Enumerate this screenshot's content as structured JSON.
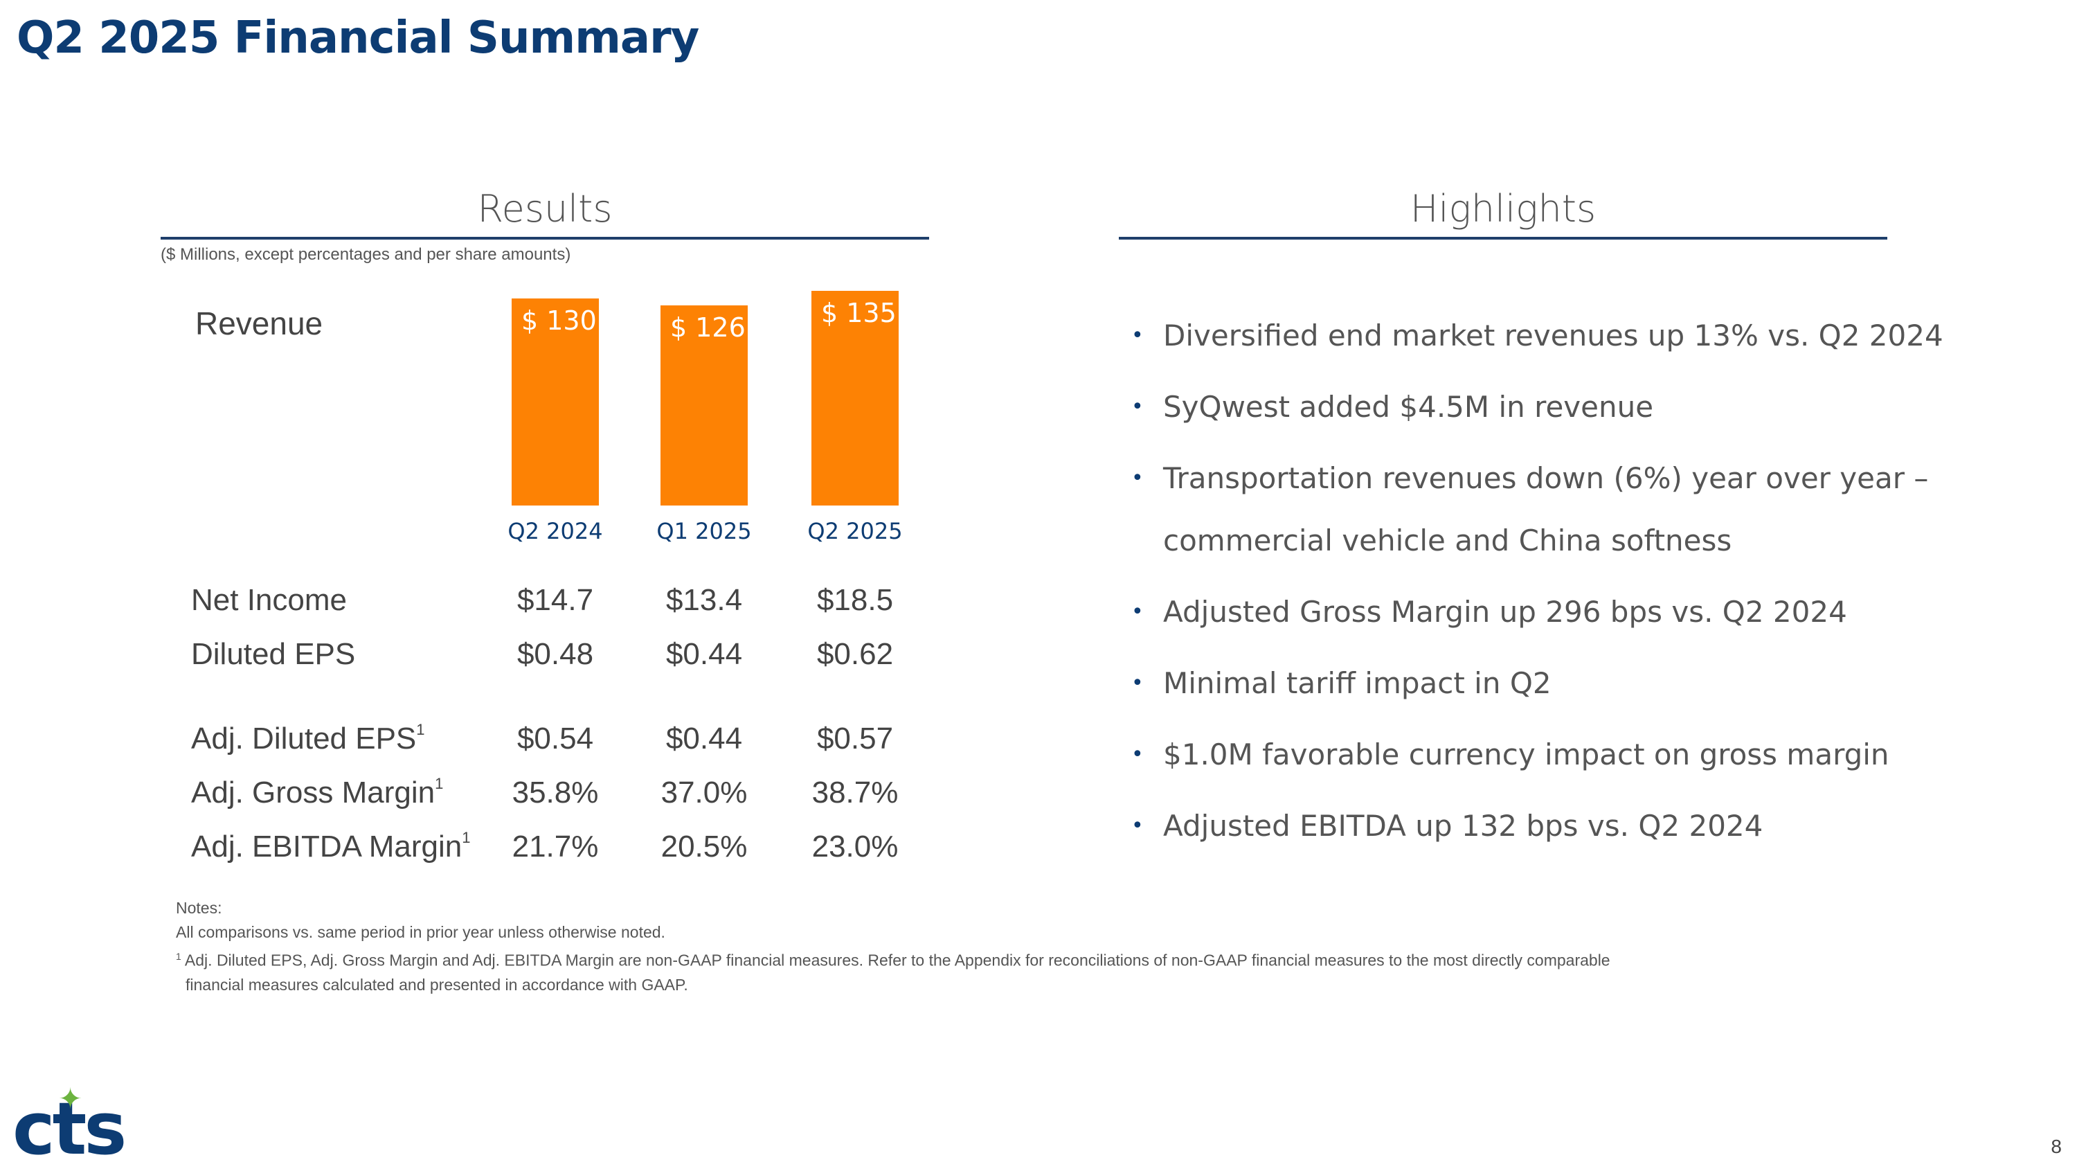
{
  "title": "Q2 2025 Financial Summary",
  "results": {
    "heading": "Results",
    "units": "($ Millions, except percentages and per share amounts)"
  },
  "highlights": {
    "heading": "Highlights",
    "items": [
      "Diversified end market revenues up 13% vs. Q2 2024",
      "SyQwest added $4.5M in revenue",
      "Transportation revenues down (6%) year over year – commercial vehicle and China softness",
      "Adjusted Gross Margin up 296 bps vs. Q2 2024",
      "Minimal tariff impact in Q2",
      "$1.0M favorable currency impact on gross margin",
      "Adjusted EBITDA up 132 bps vs. Q2 2024"
    ]
  },
  "chart_data": {
    "type": "bar",
    "title": "Revenue",
    "categories": [
      "Q2 2024",
      "Q1 2025",
      "Q2 2025"
    ],
    "values": [
      130,
      126,
      135
    ],
    "value_labels": [
      "$ 130",
      "$ 126",
      "$ 135"
    ],
    "ylim": [
      0,
      135
    ],
    "xlabel": "",
    "ylabel": ""
  },
  "metrics": [
    {
      "label": "Net Income",
      "sup": "",
      "values": [
        "$14.7",
        "$13.4",
        "$18.5"
      ]
    },
    {
      "label": "Diluted EPS",
      "sup": "",
      "values": [
        "$0.48",
        "$0.44",
        "$0.62"
      ]
    },
    {
      "label": "Adj. Diluted EPS",
      "sup": "1",
      "values": [
        "$0.54",
        "$0.44",
        "$0.57"
      ]
    },
    {
      "label": "Adj. Gross Margin",
      "sup": "1",
      "values": [
        "35.8%",
        "37.0%",
        "38.7%"
      ]
    },
    {
      "label": "Adj. EBITDA Margin",
      "sup": "1",
      "values": [
        "21.7%",
        "20.5%",
        "23.0%"
      ]
    }
  ],
  "notes": {
    "heading": "Notes:",
    "line1": "All comparisons vs. same period in prior year unless otherwise noted.",
    "footnote_marker": "1",
    "line2": "Adj. Diluted EPS, Adj. Gross Margin and Adj. EBITDA Margin are non-GAAP financial measures. Refer to the Appendix for reconciliations of non-GAAP financial measures to the most directly comparable",
    "line3": "financial measures calculated and presented in accordance with GAAP."
  },
  "logo_text": "cts",
  "page_number": "8",
  "colors": {
    "brand": "#0d3c73",
    "bar": "#fd8204",
    "accent": "#6cb33f"
  }
}
